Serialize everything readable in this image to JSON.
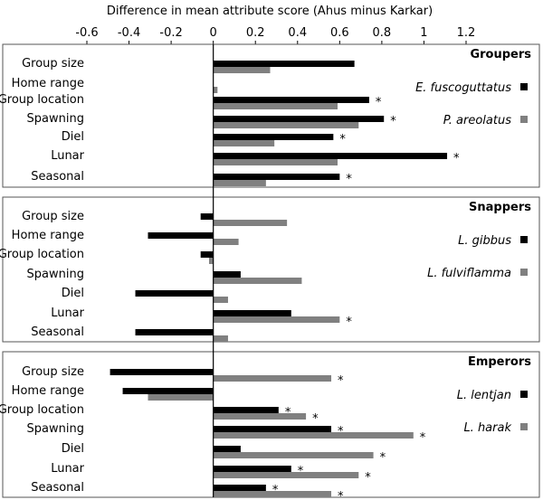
{
  "chart_data": {
    "type": "bar",
    "orientation": "horizontal",
    "title": "",
    "xlabel": "Difference in mean attribute score (Ahus minus Karkar)",
    "xlim": [
      -0.6,
      1.2
    ],
    "xticks": [
      -0.6,
      -0.4,
      -0.2,
      0,
      0.2,
      0.4,
      0.6,
      0.8,
      1,
      1.2
    ],
    "xtick_labels": [
      "-0.6",
      "-0.4",
      "-0.2",
      "0",
      "0.2",
      "0.4",
      "0.6",
      "0.8",
      "1",
      "1.2"
    ],
    "axis_position": "top",
    "grid": false,
    "colors": {
      "series1": "#000000",
      "series2": "#808080"
    },
    "categories": [
      "Group size",
      "Home range",
      "Group location",
      "Spawning",
      "Diel",
      "Lunar",
      "Seasonal"
    ],
    "significance_marker": "*",
    "panels": [
      {
        "title": "Groupers",
        "series": [
          {
            "name": "E. fuscoguttatus",
            "values": [
              0.67,
              0.0,
              0.74,
              0.81,
              0.57,
              1.11,
              0.6
            ],
            "significant": [
              false,
              false,
              true,
              true,
              true,
              true,
              true
            ]
          },
          {
            "name": "P. areolatus",
            "values": [
              0.27,
              0.02,
              0.59,
              0.69,
              0.29,
              0.59,
              0.25
            ],
            "significant": [
              false,
              false,
              false,
              false,
              false,
              false,
              false
            ]
          }
        ]
      },
      {
        "title": "Snappers",
        "series": [
          {
            "name": "L. gibbus",
            "values": [
              -0.06,
              -0.31,
              -0.06,
              0.13,
              -0.37,
              0.37,
              -0.37
            ],
            "significant": [
              false,
              false,
              false,
              false,
              false,
              false,
              false
            ]
          },
          {
            "name": "L. fulviflamma",
            "values": [
              0.35,
              0.12,
              -0.02,
              0.42,
              0.07,
              0.6,
              0.07
            ],
            "significant": [
              false,
              false,
              false,
              false,
              false,
              true,
              false
            ]
          }
        ]
      },
      {
        "title": "Emperors",
        "series": [
          {
            "name": "L. lentjan",
            "values": [
              -0.49,
              -0.43,
              0.31,
              0.56,
              0.13,
              0.37,
              0.25
            ],
            "significant": [
              false,
              false,
              true,
              true,
              false,
              true,
              true
            ]
          },
          {
            "name": "L. harak",
            "values": [
              0.56,
              -0.31,
              0.44,
              0.95,
              0.76,
              0.69,
              0.56
            ],
            "significant": [
              true,
              false,
              true,
              true,
              true,
              true,
              true
            ]
          }
        ]
      }
    ]
  }
}
